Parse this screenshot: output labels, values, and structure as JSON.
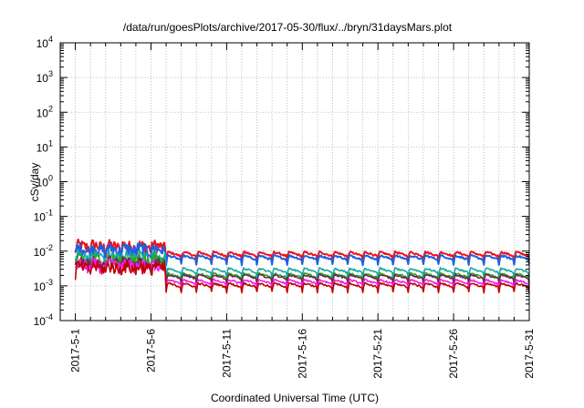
{
  "chart_data": {
    "type": "line",
    "title": "/data/run/goesPlots/archive/2017-05-30/flux/../bryn/31daysMars.plot",
    "xlabel": "Coordinated Universal Time (UTC)",
    "ylabel": "cSv/day",
    "yscale": "log",
    "ylim": [
      0.0001,
      10000
    ],
    "xlim": [
      "2017-04-30",
      "2017-05-31"
    ],
    "grid": true,
    "x_ticks": [
      "2017-5-1",
      "2017-5-6",
      "2017-5-11",
      "2017-5-16",
      "2017-5-21",
      "2017-5-26",
      "2017-5-31"
    ],
    "y_ticks": [
      {
        "base": "10",
        "exp": "-4"
      },
      {
        "base": "10",
        "exp": "-3"
      },
      {
        "base": "10",
        "exp": "-2"
      },
      {
        "base": "10",
        "exp": "-1"
      },
      {
        "base": "10",
        "exp": "0"
      },
      {
        "base": "10",
        "exp": "1"
      },
      {
        "base": "10",
        "exp": "2"
      },
      {
        "base": "10",
        "exp": "3"
      },
      {
        "base": "10",
        "exp": "4"
      }
    ],
    "series": [
      {
        "color": "#e8141c",
        "early_level": 0.016,
        "late_level": 0.0095,
        "dip": 0.55
      },
      {
        "color": "#1f5fe0",
        "early_level": 0.013,
        "late_level": 0.0075,
        "dip": 0.55
      },
      {
        "color": "#1aa8a0",
        "early_level": 0.0085,
        "late_level": 0.0032,
        "dip": 0.55
      },
      {
        "color": "#2aa62a",
        "early_level": 0.0065,
        "late_level": 0.0023,
        "dip": 0.55
      },
      {
        "color": "#6a2a4a",
        "early_level": 0.0055,
        "late_level": 0.0021,
        "dip": 0.55
      },
      {
        "color": "#f01ee8",
        "early_level": 0.0045,
        "late_level": 0.0015,
        "dip": 0.55
      },
      {
        "color": "#c00000",
        "early_level": 0.004,
        "late_level": 0.0012,
        "dip": 0.55
      }
    ]
  }
}
